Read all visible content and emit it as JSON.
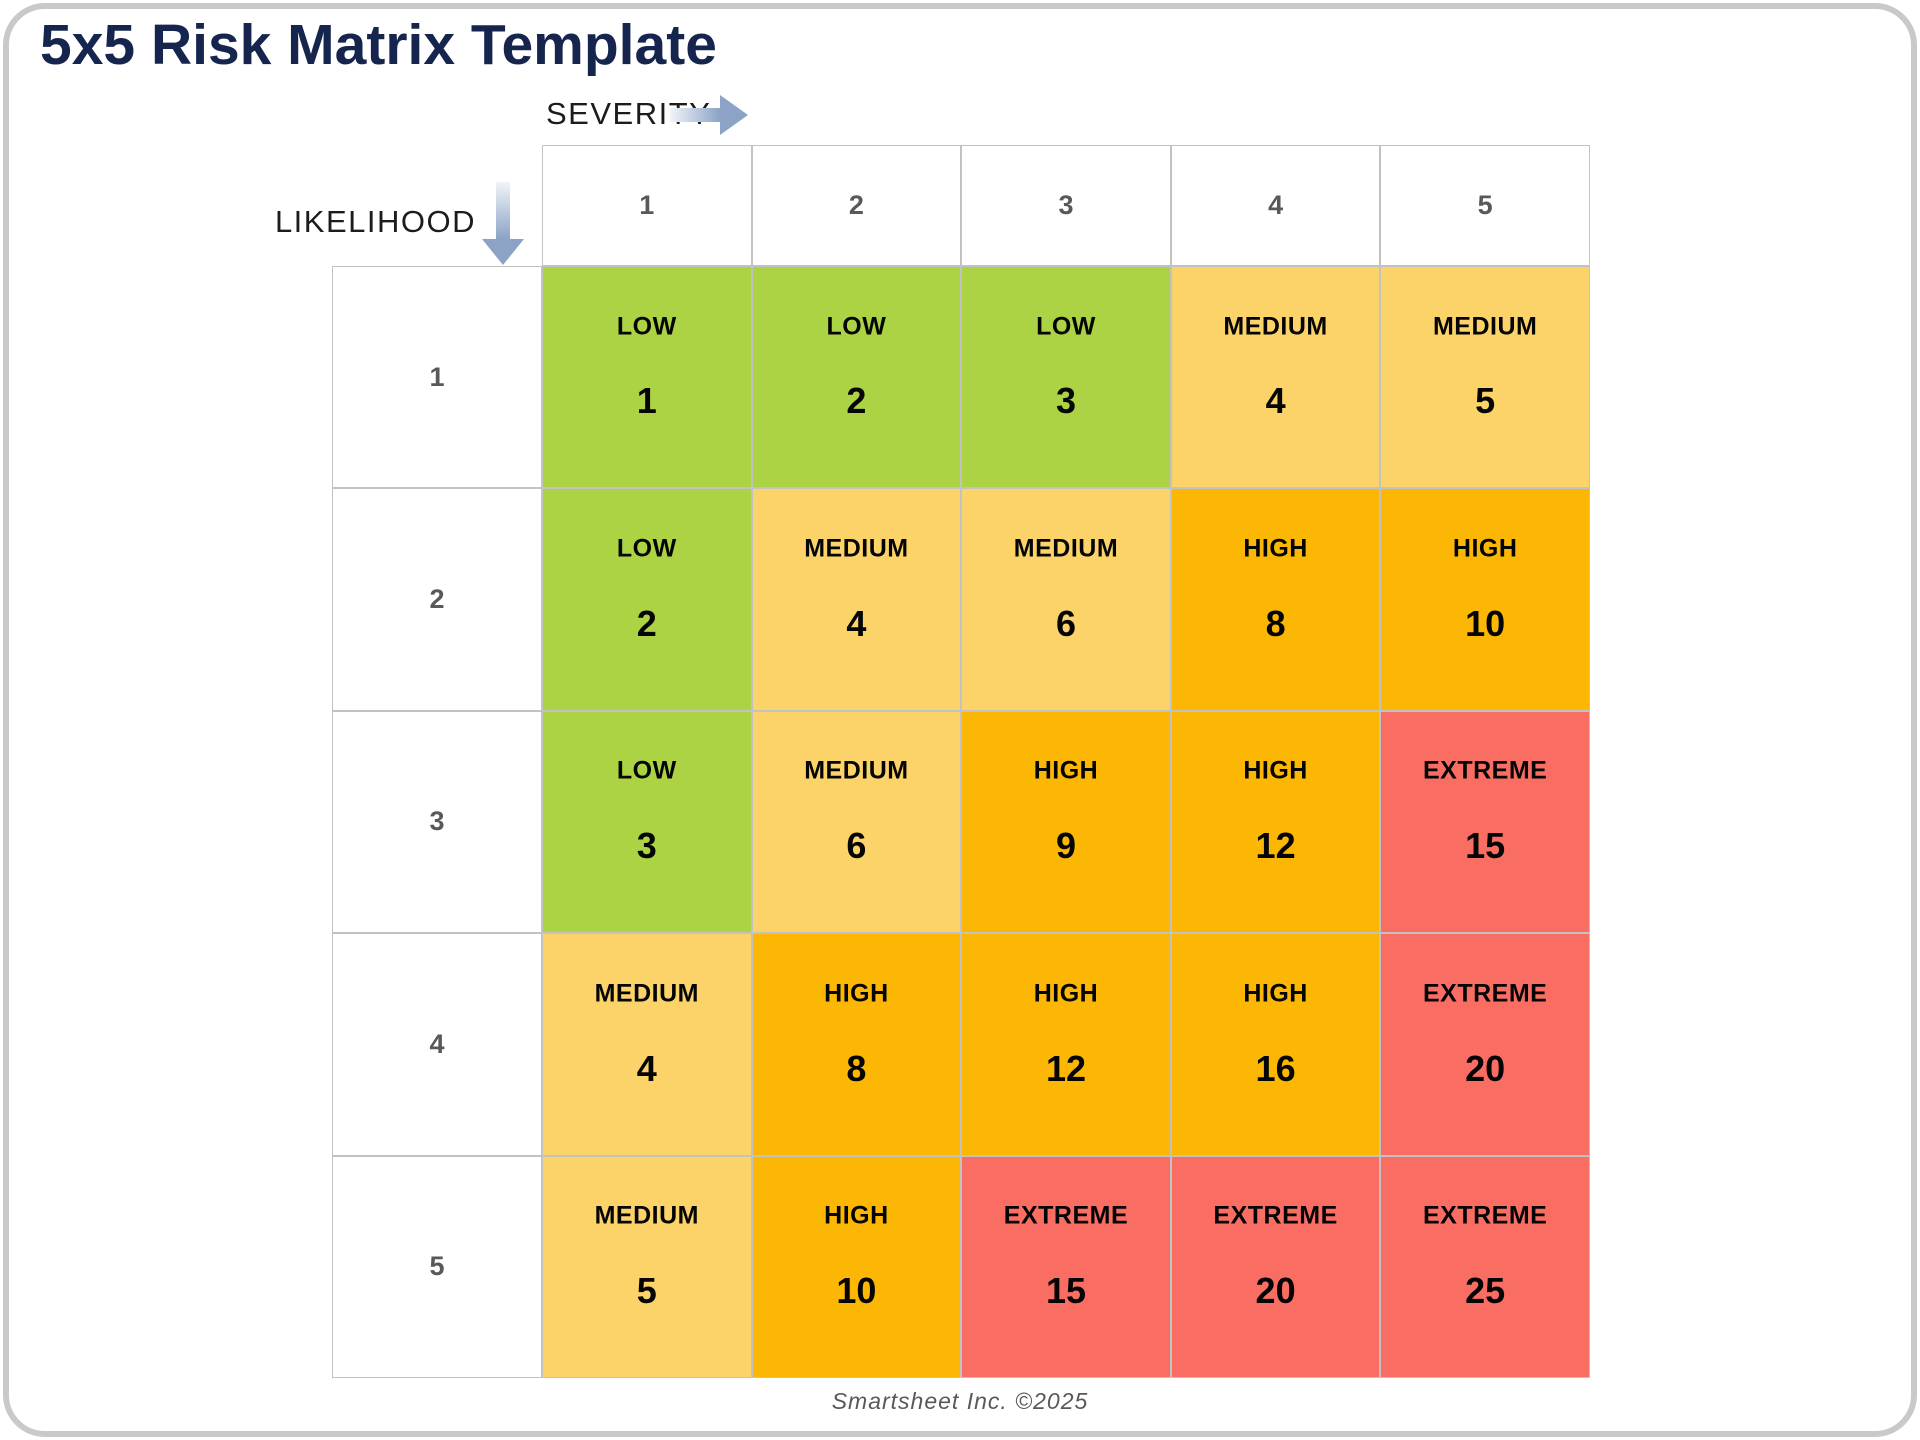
{
  "page": {
    "title": "5x5 Risk Matrix Template",
    "footer": "Smartsheet Inc. ©2025"
  },
  "axes": {
    "severity_label": "SEVERITY",
    "likelihood_label": "LIKELIHOOD",
    "severity_levels": [
      "1",
      "2",
      "3",
      "4",
      "5"
    ],
    "likelihood_levels": [
      "1",
      "2",
      "3",
      "4",
      "5"
    ]
  },
  "colors": {
    "LOW": "#ABD344",
    "MEDIUM": "#FBD369",
    "HIGH": "#FCB705",
    "EXTREME": "#F96D62",
    "title_text": "#16254E",
    "header_number_text": "#595959",
    "gridline": "#C2C2C2",
    "arrow": "#8CA3C6",
    "footer_text": "#595959",
    "page_border": "#C9C9C9"
  },
  "matrix": {
    "rows": [
      {
        "likelihood": "1",
        "cells": [
          {
            "label": "LOW",
            "value": "1"
          },
          {
            "label": "LOW",
            "value": "2"
          },
          {
            "label": "LOW",
            "value": "3"
          },
          {
            "label": "MEDIUM",
            "value": "4"
          },
          {
            "label": "MEDIUM",
            "value": "5"
          }
        ]
      },
      {
        "likelihood": "2",
        "cells": [
          {
            "label": "LOW",
            "value": "2"
          },
          {
            "label": "MEDIUM",
            "value": "4"
          },
          {
            "label": "MEDIUM",
            "value": "6"
          },
          {
            "label": "HIGH",
            "value": "8"
          },
          {
            "label": "HIGH",
            "value": "10"
          }
        ]
      },
      {
        "likelihood": "3",
        "cells": [
          {
            "label": "LOW",
            "value": "3"
          },
          {
            "label": "MEDIUM",
            "value": "6"
          },
          {
            "label": "HIGH",
            "value": "9"
          },
          {
            "label": "HIGH",
            "value": "12"
          },
          {
            "label": "EXTREME",
            "value": "15"
          }
        ]
      },
      {
        "likelihood": "4",
        "cells": [
          {
            "label": "MEDIUM",
            "value": "4"
          },
          {
            "label": "HIGH",
            "value": "8"
          },
          {
            "label": "HIGH",
            "value": "12"
          },
          {
            "label": "HIGH",
            "value": "16"
          },
          {
            "label": "EXTREME",
            "value": "20"
          }
        ]
      },
      {
        "likelihood": "5",
        "cells": [
          {
            "label": "MEDIUM",
            "value": "5"
          },
          {
            "label": "HIGH",
            "value": "10"
          },
          {
            "label": "EXTREME",
            "value": "15"
          },
          {
            "label": "EXTREME",
            "value": "20"
          },
          {
            "label": "EXTREME",
            "value": "25"
          }
        ]
      }
    ]
  }
}
